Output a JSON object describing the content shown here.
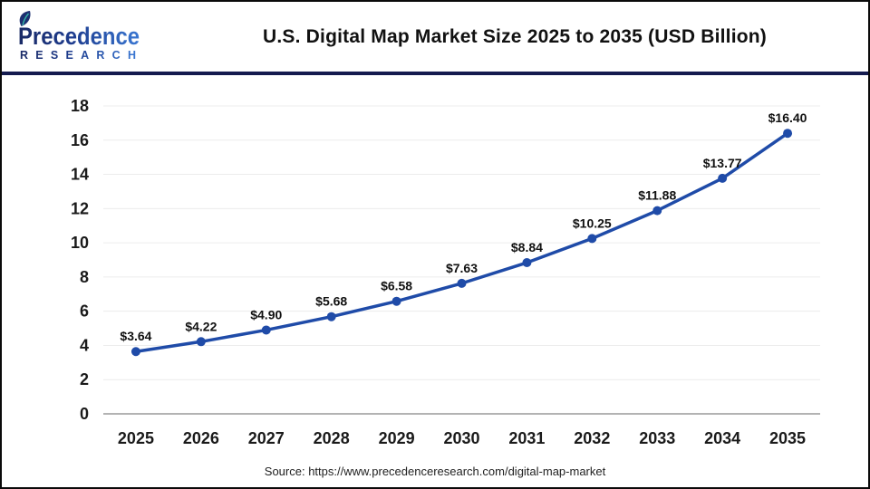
{
  "header": {
    "logo": {
      "brand": "Precedence",
      "sub": "RESEARCH"
    },
    "title": "U.S. Digital Map Market Size 2025 to 2035 (USD Billion)"
  },
  "chart_data": {
    "type": "line",
    "title": "U.S. Digital Map Market Size 2025 to 2035 (USD Billion)",
    "categories": [
      "2025",
      "2026",
      "2027",
      "2028",
      "2029",
      "2030",
      "2031",
      "2032",
      "2033",
      "2034",
      "2035"
    ],
    "series": [
      {
        "name": "U.S. Digital Map Market Size (USD Billion)",
        "values": [
          3.64,
          4.22,
          4.9,
          5.68,
          6.58,
          7.63,
          8.84,
          10.25,
          11.88,
          13.77,
          16.4
        ]
      }
    ],
    "point_labels": [
      "$3.64",
      "$4.22",
      "$4.90",
      "$5.68",
      "$6.58",
      "$7.63",
      "$8.84",
      "$10.25",
      "$11.88",
      "$13.77",
      "$16.40"
    ],
    "xlabel": "",
    "ylabel": "",
    "ylim": [
      0,
      18
    ],
    "ytick_step": 2,
    "grid": true,
    "legend": "none"
  },
  "footer": {
    "source": "Source: https://www.precedenceresearch.com/digital-map-market"
  },
  "colors": {
    "line": "#1f4ba8",
    "marker": "#1f4ba8",
    "grid": "#ececec",
    "axis_line": "#b3b3b3",
    "text": "#1a1a1a",
    "divider": "#141b4f",
    "border": "#0a0a0a",
    "logo_navy": "#1a2a66",
    "logo_mid": "#1e3d8f",
    "logo_blue": "#3a77d2",
    "leaf_accent": "#35b6a8"
  }
}
